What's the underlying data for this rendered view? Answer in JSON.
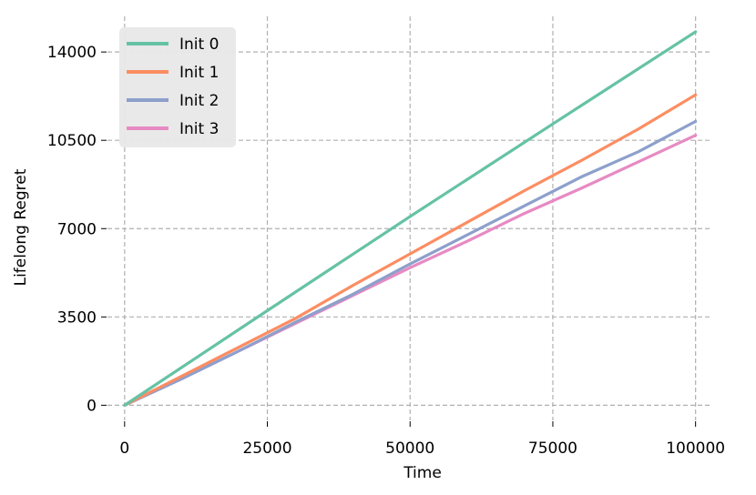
{
  "chart_data": {
    "type": "line",
    "title": "",
    "xlabel": "Time",
    "ylabel": "Lifelong Regret",
    "xlim": [
      -3000,
      105000
    ],
    "ylim": [
      -600,
      15700
    ],
    "x_ticks": [
      0,
      25000,
      50000,
      75000,
      100000
    ],
    "y_ticks": [
      0,
      3500,
      7000,
      10500,
      14000
    ],
    "x_tick_labels": [
      "0",
      "25000",
      "50000",
      "75000",
      "100000"
    ],
    "y_tick_labels": [
      "0",
      "3500",
      "7000",
      "10500",
      "14000"
    ],
    "grid": true,
    "legend_position": "top-left",
    "series": [
      {
        "name": "Init 0",
        "color": "#66c2a5",
        "x": [
          0,
          25000,
          50000,
          75000,
          100000
        ],
        "y": [
          0,
          3750,
          7480,
          11150,
          14800
        ]
      },
      {
        "name": "Init 1",
        "color": "#fc8d62",
        "x": [
          0,
          10000,
          20000,
          30000,
          40000,
          50000,
          60000,
          70000,
          80000,
          90000,
          100000
        ],
        "y": [
          0,
          1150,
          2300,
          3450,
          4750,
          6000,
          7250,
          8500,
          9700,
          10950,
          12300
        ]
      },
      {
        "name": "Init 2",
        "color": "#8da0cb",
        "x": [
          0,
          10000,
          20000,
          30000,
          40000,
          50000,
          60000,
          70000,
          80000,
          90000,
          100000
        ],
        "y": [
          0,
          1050,
          2150,
          3300,
          4400,
          5600,
          6750,
          7900,
          9050,
          10050,
          11250
        ]
      },
      {
        "name": "Init 3",
        "color": "#e78ac3",
        "x": [
          0,
          10000,
          20000,
          30000,
          40000,
          50000,
          60000,
          70000,
          80000,
          90000,
          100000
        ],
        "y": [
          0,
          1050,
          2150,
          3250,
          4350,
          5450,
          6500,
          7600,
          8600,
          9650,
          10700
        ]
      }
    ]
  }
}
